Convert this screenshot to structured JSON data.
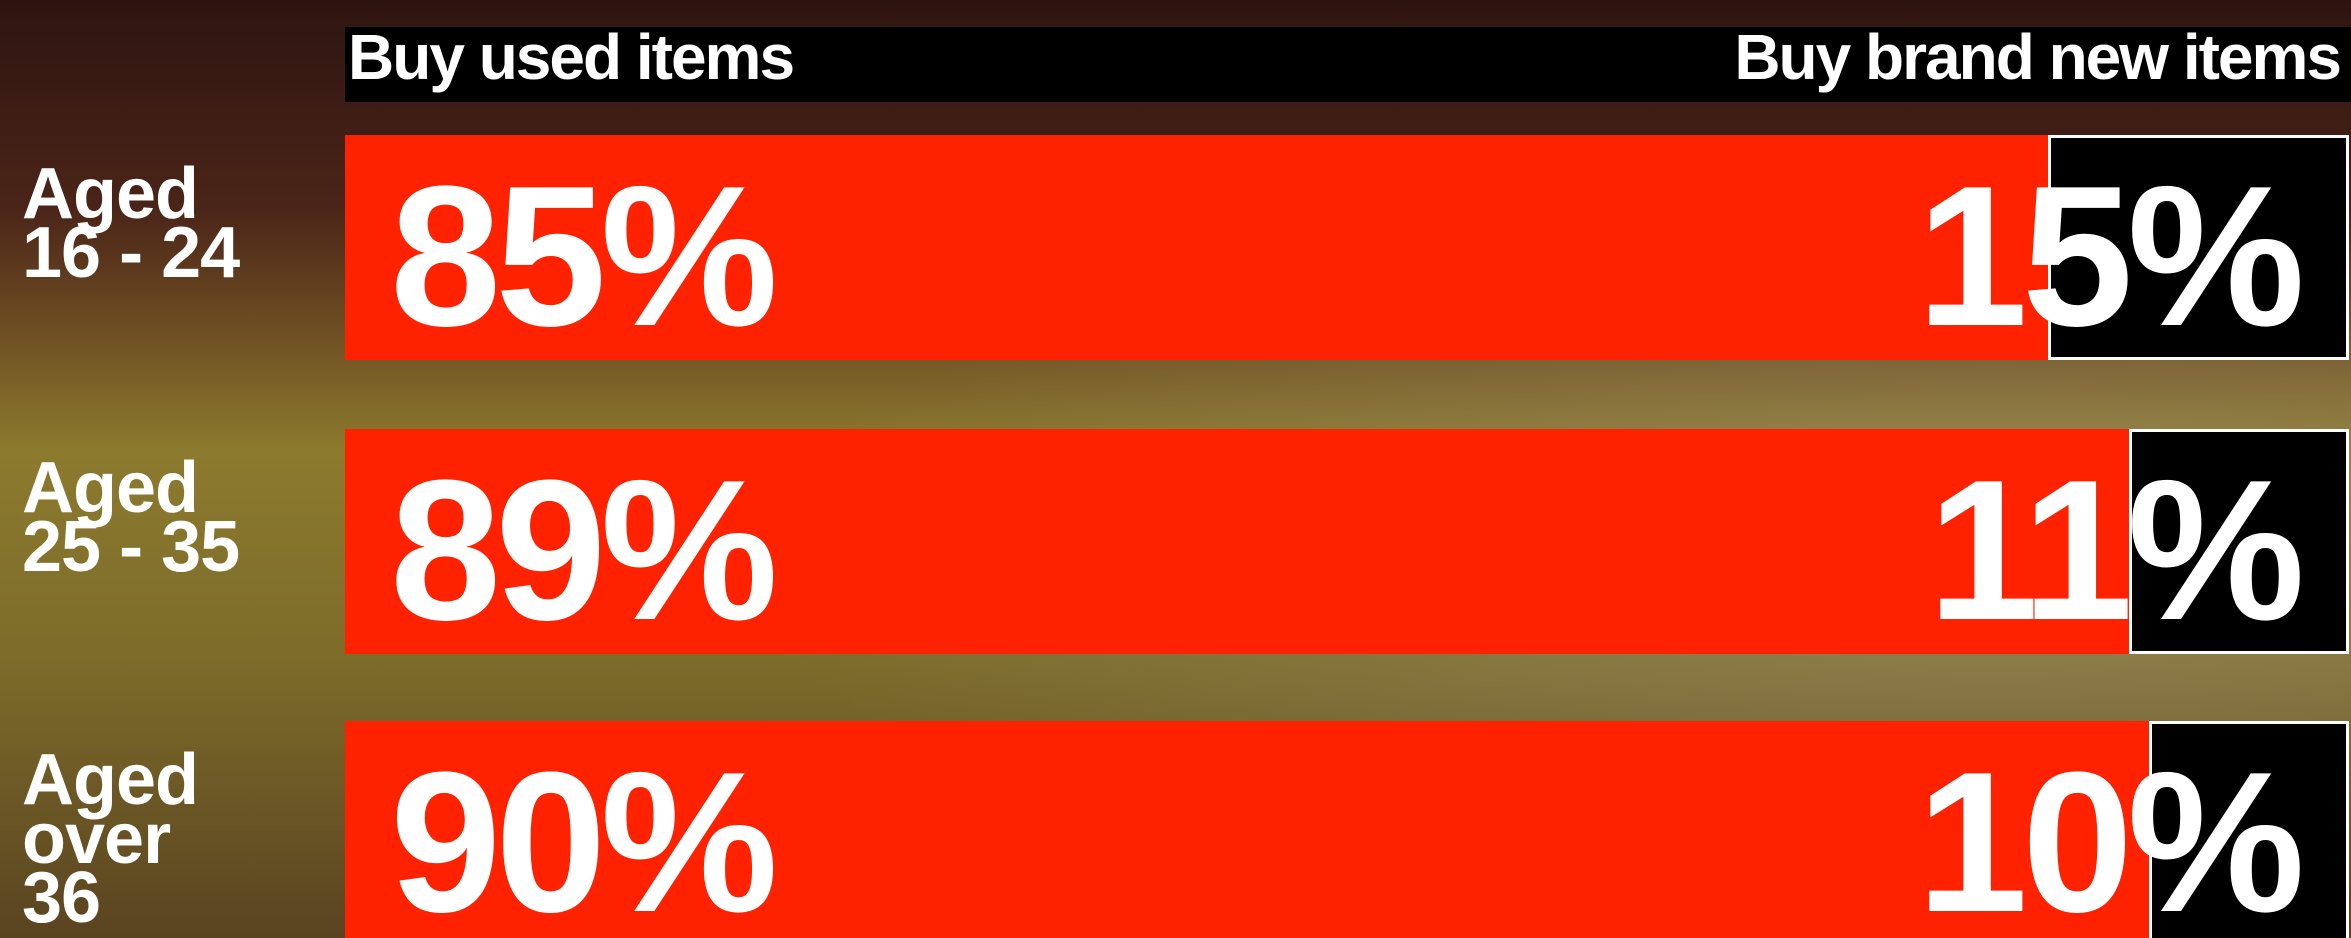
{
  "chart_data": {
    "type": "stacked-bar-horizontal",
    "categories": [
      "Aged\n16 - 24",
      "Aged\n25 - 35",
      "Aged\nover\n36"
    ],
    "series": [
      {
        "name": "Buy used items",
        "color": "#ff2200",
        "values": [
          85,
          89,
          90
        ],
        "value_labels": [
          "85%",
          "89%",
          "90%"
        ]
      },
      {
        "name": "Buy brand new items",
        "color": "#000000",
        "values": [
          15,
          11,
          10
        ],
        "value_labels": [
          "15%",
          "11%",
          "10%"
        ]
      }
    ],
    "xlim": [
      0,
      100
    ]
  }
}
